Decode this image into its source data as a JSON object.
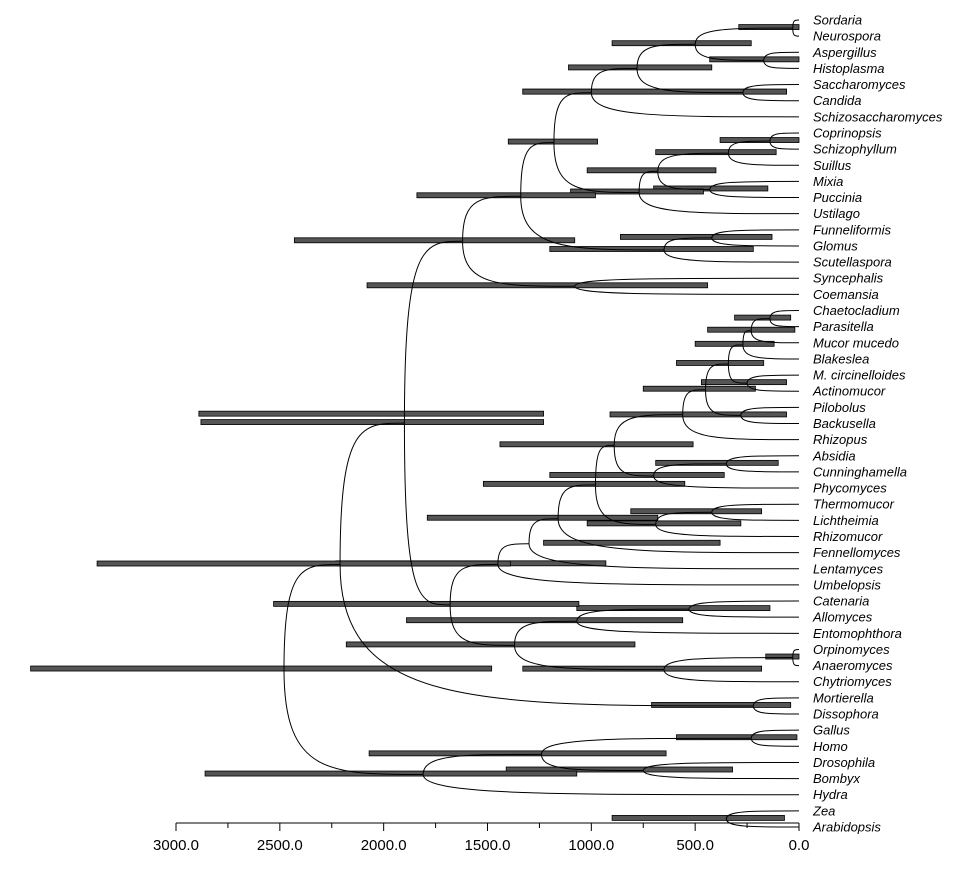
{
  "chart_data": {
    "type": "tree",
    "title": "",
    "xlabel": "",
    "xlim": [
      3000,
      0
    ],
    "x_ticks": [
      3000,
      2500,
      2000,
      1500,
      1000,
      500,
      0
    ],
    "x_tick_labels": [
      "3000.0",
      "2500.0",
      "2000.0",
      "1500.0",
      "1000.0",
      "500.0",
      "0.0"
    ],
    "taxa": [
      "Sordaria",
      "Neurospora",
      "Aspergillus",
      "Histoplasma",
      "Saccharomyces",
      "Candida",
      "Schizosaccharomyces",
      "Coprinopsis",
      "Schizophyllum",
      "Suillus",
      "Mixia",
      "Puccinia",
      "Ustilago",
      "Funneliformis",
      "Glomus",
      "Scutellaspora",
      "Syncephalis",
      "Coemansia",
      "Chaetocladium",
      "Parasitella",
      "Mucor mucedo",
      "Blakeslea",
      "M. circinelloides",
      "Actinomucor",
      "Pilobolus",
      "Backusella",
      "Rhizopus",
      "Absidia",
      "Cunninghamella",
      "Phycomyces",
      "Thermomucor",
      "Lichtheimia",
      "Rhizomucor",
      "Fennellomyces",
      "Lentamyces",
      "Umbelopsis",
      "Catenaria",
      "Allomyces",
      "Entomophthora",
      "Orpinomyces",
      "Anaeromyces",
      "Chytriomyces",
      "Mortierella",
      "Dissophora",
      "Gallus",
      "Homo",
      "Drosophila",
      "Bombyx",
      "Hydra",
      "Zea",
      "Arabidopsis"
    ],
    "nodes": [
      {
        "id": "n1",
        "children": [
          "Sordaria",
          "Neurospora"
        ],
        "age": 30,
        "ci": [
          290,
          0
        ]
      },
      {
        "id": "n2",
        "children": [
          "Aspergillus",
          "Histoplasma"
        ],
        "age": 170,
        "ci": [
          430,
          0
        ]
      },
      {
        "id": "n3",
        "children": [
          "n1",
          "n2"
        ],
        "age": 500,
        "ci": [
          900,
          230
        ]
      },
      {
        "id": "n4",
        "children": [
          "Saccharomyces",
          "Candida"
        ],
        "age": 270,
        "ci": [
          1330,
          60
        ]
      },
      {
        "id": "n5",
        "children": [
          "n3",
          "n4"
        ],
        "age": 780,
        "ci": [
          1110,
          420
        ]
      },
      {
        "id": "n6",
        "children": [
          "n5",
          "Schizosaccharomyces"
        ],
        "age": 1000,
        "ci": [
          1330,
          60
        ]
      },
      {
        "id": "n7",
        "children": [
          "Coprinopsis",
          "Schizophyllum"
        ],
        "age": 140,
        "ci": [
          380,
          0
        ]
      },
      {
        "id": "n8",
        "children": [
          "n7",
          "Suillus"
        ],
        "age": 340,
        "ci": [
          690,
          110
        ]
      },
      {
        "id": "n9",
        "children": [
          "Mixia",
          "Puccinia"
        ],
        "age": 430,
        "ci": [
          700,
          150
        ]
      },
      {
        "id": "n10",
        "children": [
          "n8",
          "n9"
        ],
        "age": 680,
        "ci": [
          1020,
          400
        ]
      },
      {
        "id": "n11",
        "children": [
          "n10",
          "Ustilago"
        ],
        "age": 770,
        "ci": [
          1100,
          460
        ]
      },
      {
        "id": "n12",
        "children": [
          "n6",
          "n11"
        ],
        "age": 1180,
        "ci": [
          1400,
          970
        ]
      },
      {
        "id": "n13",
        "children": [
          "Funneliformis",
          "Glomus"
        ],
        "age": 420,
        "ci": [
          860,
          130
        ]
      },
      {
        "id": "n14",
        "children": [
          "n13",
          "Scutellaspora"
        ],
        "age": 650,
        "ci": [
          1200,
          220
        ]
      },
      {
        "id": "n15",
        "children": [
          "n12",
          "n14"
        ],
        "age": 1340,
        "ci": [
          1840,
          980
        ]
      },
      {
        "id": "n16",
        "children": [
          "Syncephalis",
          "Coemansia"
        ],
        "age": 1080,
        "ci": [
          2080,
          440
        ]
      },
      {
        "id": "n17",
        "children": [
          "n15",
          "n16"
        ],
        "age": 1620,
        "ci": [
          2430,
          1080
        ]
      },
      {
        "id": "n18",
        "children": [
          "Chaetocladium",
          "Parasitella"
        ],
        "age": 140,
        "ci": [
          310,
          40
        ]
      },
      {
        "id": "n19",
        "children": [
          "n18",
          "Mucor mucedo"
        ],
        "age": 230,
        "ci": [
          440,
          20
        ]
      },
      {
        "id": "n20",
        "children": [
          "n19",
          "Blakeslea"
        ],
        "age": 270,
        "ci": [
          500,
          120
        ]
      },
      {
        "id": "n21",
        "children": [
          "M. circinelloides",
          "Actinomucor"
        ],
        "age": 250,
        "ci": [
          470,
          60
        ]
      },
      {
        "id": "n22",
        "children": [
          "n20",
          "n21"
        ],
        "age": 340,
        "ci": [
          590,
          170
        ]
      },
      {
        "id": "n23",
        "children": [
          "Pilobolus",
          "Backusella"
        ],
        "age": 280,
        "ci": [
          910,
          60
        ]
      },
      {
        "id": "n24",
        "children": [
          "n22",
          "n23"
        ],
        "age": 450,
        "ci": [
          750,
          210
        ]
      },
      {
        "id": "n25",
        "children": [
          "n24",
          "Rhizopus"
        ],
        "age": 560,
        "ci": [
          2890,
          1230
        ]
      },
      {
        "id": "n26",
        "children": [
          "Absidia",
          "Cunninghamella"
        ],
        "age": 350,
        "ci": [
          690,
          100
        ]
      },
      {
        "id": "n27",
        "children": [
          "n26",
          "Phycomyces"
        ],
        "age": 700,
        "ci": [
          1200,
          360
        ]
      },
      {
        "id": "n28",
        "children": [
          "n25",
          "n27"
        ],
        "age": 890,
        "ci": [
          1440,
          510
        ]
      },
      {
        "id": "n29",
        "children": [
          "Thermomucor",
          "Lichtheimia"
        ],
        "age": 420,
        "ci": [
          810,
          180
        ]
      },
      {
        "id": "n30",
        "children": [
          "n29",
          "Rhizomucor"
        ],
        "age": 690,
        "ci": [
          1020,
          280
        ]
      },
      {
        "id": "n31",
        "children": [
          "n28",
          "n30"
        ],
        "age": 980,
        "ci": [
          1520,
          550
        ]
      },
      {
        "id": "n32",
        "children": [
          "n31",
          "Fennellomyces"
        ],
        "age": 1160,
        "ci": [
          1790,
          680
        ]
      },
      {
        "id": "n33",
        "children": [
          "n32",
          "Lentamyces"
        ],
        "age": 1300,
        "ci": [
          1230,
          380
        ]
      },
      {
        "id": "n34",
        "children": [
          "n33",
          "Umbelopsis"
        ],
        "age": 1450,
        "ci": [
          2230,
          930
        ]
      },
      {
        "id": "n35",
        "children": [
          "Catenaria",
          "Allomyces"
        ],
        "age": 530,
        "ci": [
          1070,
          140
        ]
      },
      {
        "id": "n36",
        "children": [
          "n35",
          "Entomophthora"
        ],
        "age": 1070,
        "ci": [
          1890,
          560
        ]
      },
      {
        "id": "n37",
        "children": [
          "Orpinomyces",
          "Anaeromyces"
        ],
        "age": 30,
        "ci": [
          160,
          0
        ]
      },
      {
        "id": "n38",
        "children": [
          "n37",
          "Chytriomyces"
        ],
        "age": 650,
        "ci": [
          1330,
          180
        ]
      },
      {
        "id": "n39",
        "children": [
          "n36",
          "n38"
        ],
        "age": 1370,
        "ci": [
          2180,
          790
        ]
      },
      {
        "id": "n40",
        "children": [
          "n34",
          "n39"
        ],
        "age": 1680,
        "ci": [
          2530,
          1060
        ]
      },
      {
        "id": "n41",
        "children": [
          "n17",
          "n40"
        ],
        "age": 1900,
        "ci": [
          2880,
          1230
        ]
      },
      {
        "id": "n42",
        "children": [
          "Mortierella",
          "Dissophora"
        ],
        "age": 220,
        "ci": [
          710,
          40
        ]
      },
      {
        "id": "n43",
        "children": [
          "n41",
          "n42"
        ],
        "age": 2210,
        "ci": [
          3380,
          1390
        ]
      },
      {
        "id": "n44",
        "children": [
          "Gallus",
          "Homo"
        ],
        "age": 230,
        "ci": [
          590,
          10
        ]
      },
      {
        "id": "n45",
        "children": [
          "Drosophila",
          "Bombyx"
        ],
        "age": 750,
        "ci": [
          1410,
          320
        ]
      },
      {
        "id": "n46",
        "children": [
          "n44",
          "n45"
        ],
        "age": 1240,
        "ci": [
          2070,
          640
        ]
      },
      {
        "id": "n47",
        "children": [
          "n46",
          "Hydra"
        ],
        "age": 1810,
        "ci": [
          2860,
          1070
        ]
      },
      {
        "id": "n48",
        "children": [
          "n43",
          "n47"
        ],
        "age": 2480,
        "ci": [
          3700,
          1480
        ]
      },
      {
        "id": "n49",
        "children": [
          "Zea",
          "Arabidopsis"
        ],
        "age": 350,
        "ci": [
          900,
          70
        ]
      }
    ]
  }
}
